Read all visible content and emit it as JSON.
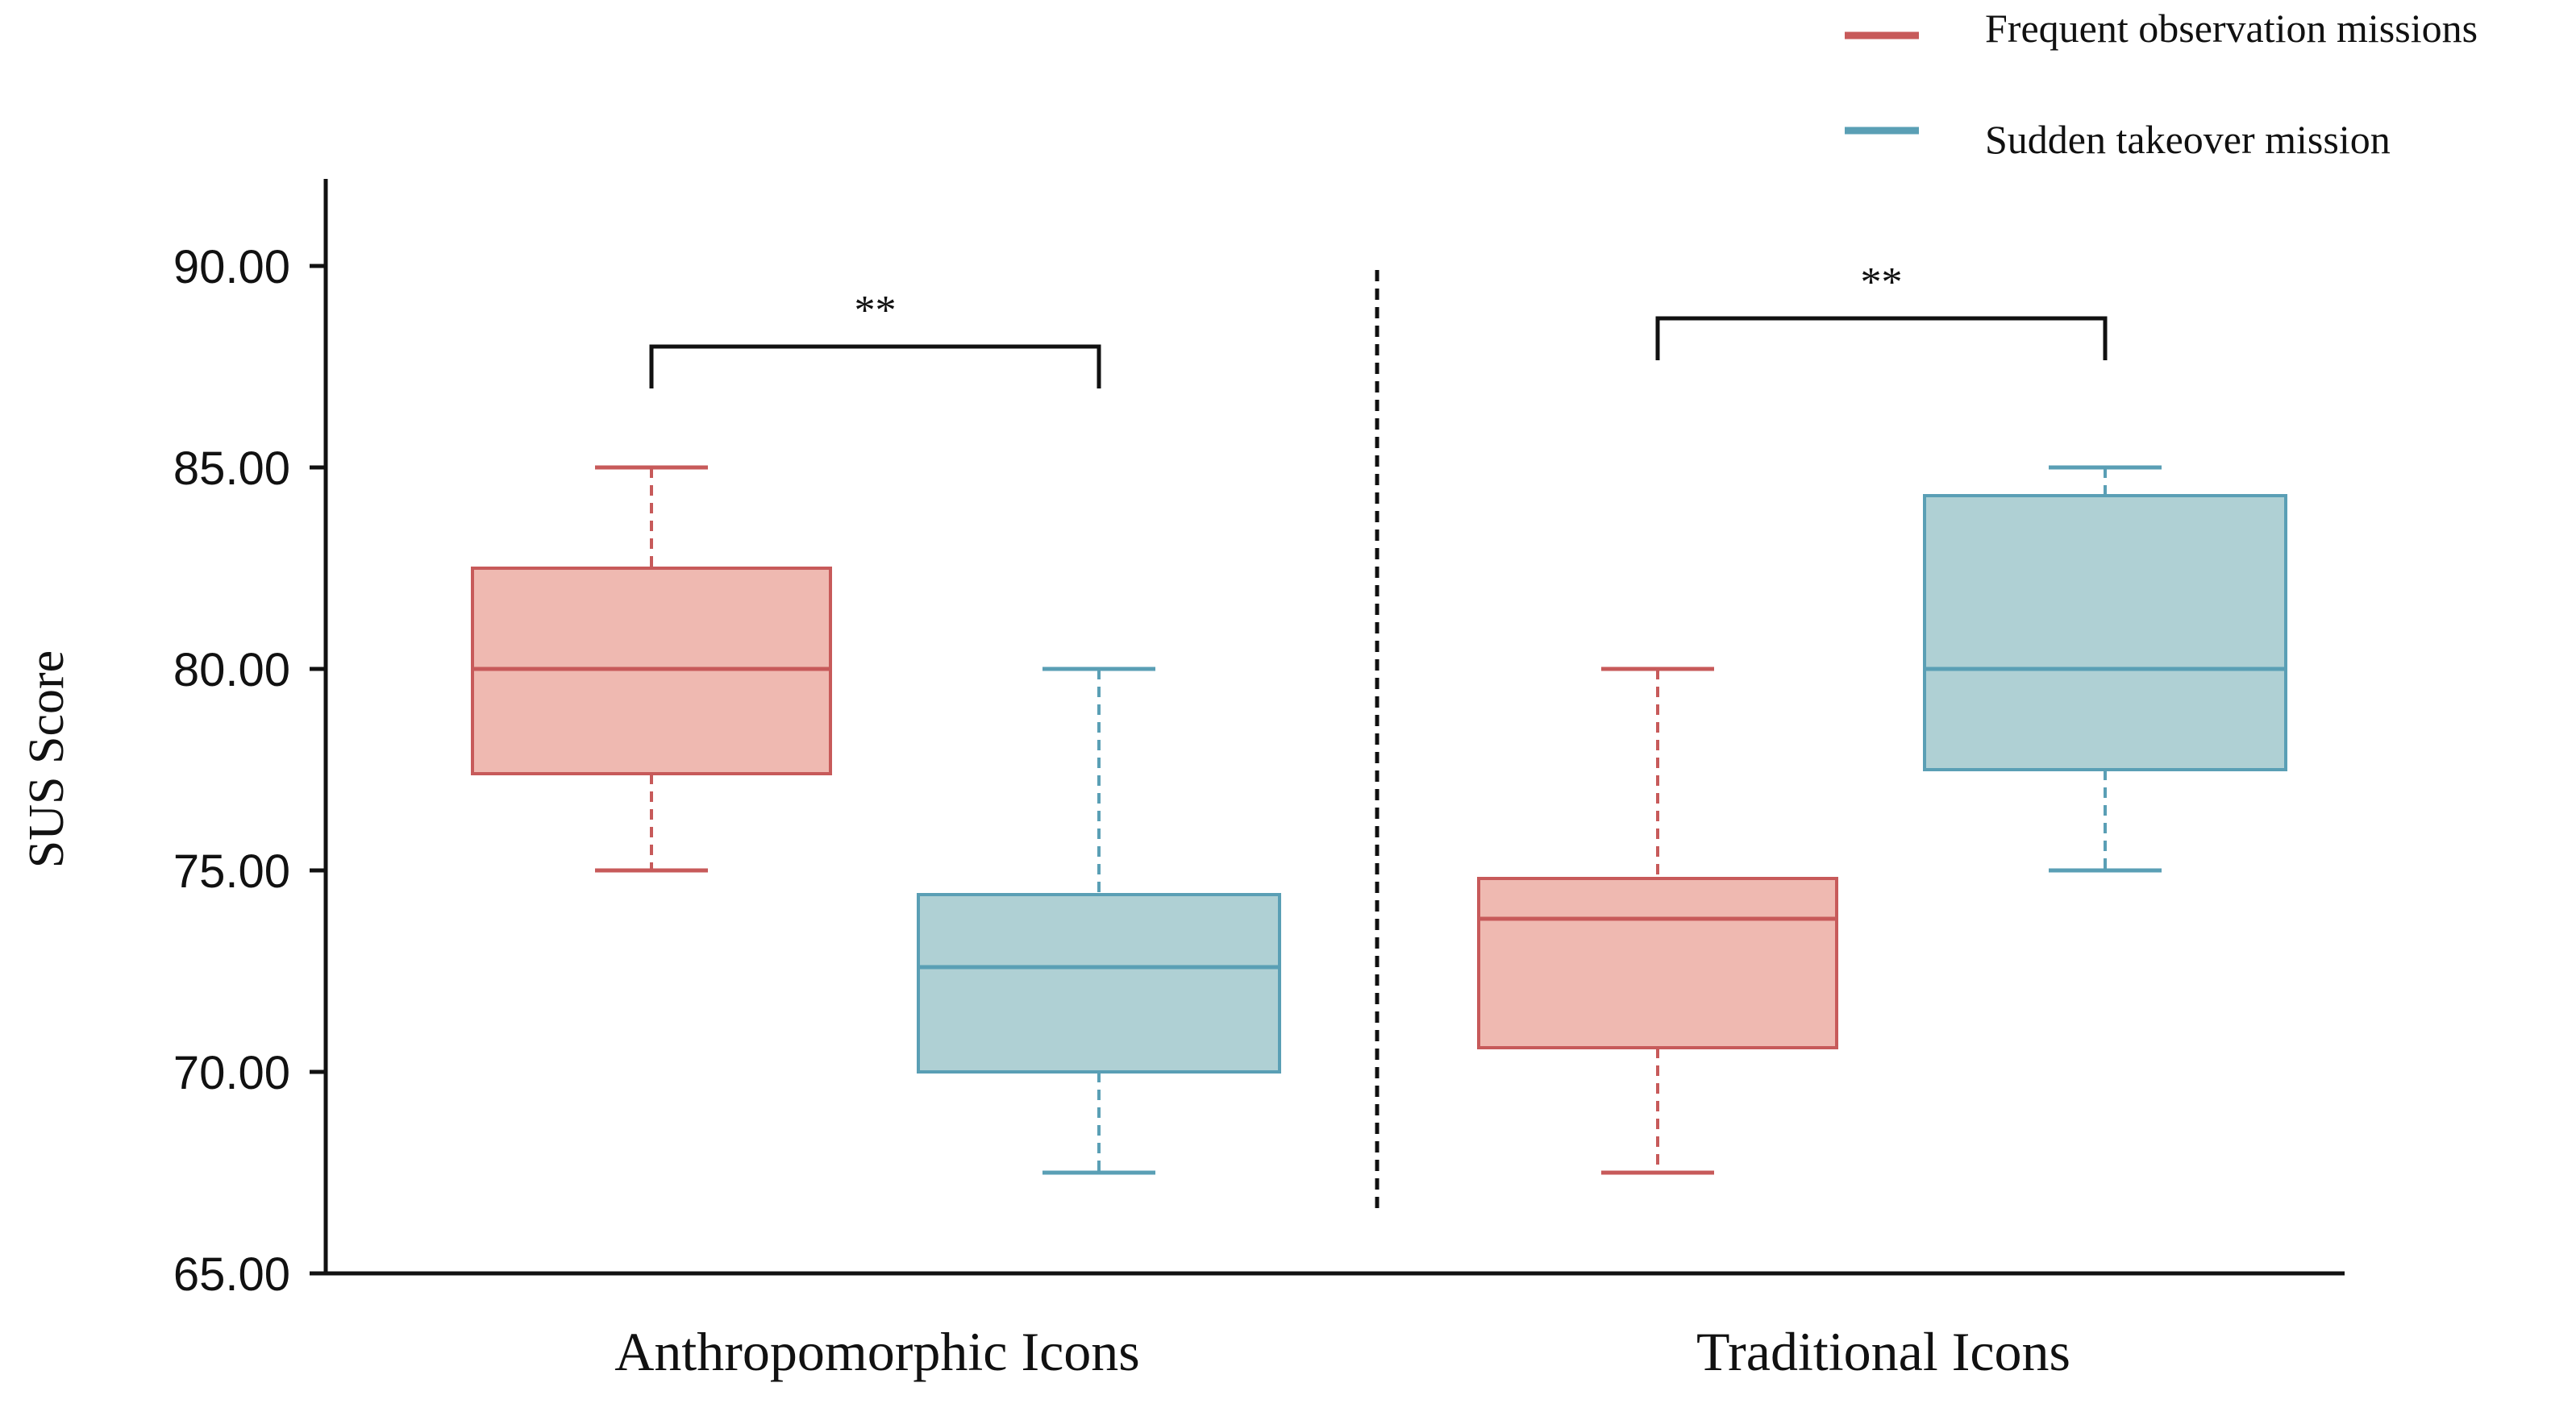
{
  "chart_data": {
    "type": "box",
    "ylabel": "SUS Score",
    "xlabel": "",
    "ylim": [
      65,
      92
    ],
    "y_ticks": [
      65,
      70,
      75,
      80,
      85,
      90
    ],
    "y_tick_labels": [
      "65.00",
      "70.00",
      "75.00",
      "80.00",
      "85.00",
      "90.00"
    ],
    "groups": [
      "Anthropomorphic Icons",
      "Traditional Icons"
    ],
    "legend_position": "top-right",
    "series": [
      {
        "name": "Frequent observation missions",
        "color": "#c75a5a",
        "fill": "#efb9b1",
        "boxes": [
          {
            "group": "Anthropomorphic Icons",
            "min": 75.0,
            "q1": 77.4,
            "median": 80.0,
            "q3": 82.5,
            "max": 85.0
          },
          {
            "group": "Traditional Icons",
            "min": 67.5,
            "q1": 70.6,
            "median": 73.8,
            "q3": 74.8,
            "max": 80.0
          }
        ]
      },
      {
        "name": "Sudden takeover mission",
        "color": "#5a9fb5",
        "fill": "#afd0d4",
        "boxes": [
          {
            "group": "Anthropomorphic Icons",
            "min": 67.5,
            "q1": 70.0,
            "median": 72.6,
            "q3": 74.4,
            "max": 80.0
          },
          {
            "group": "Traditional Icons",
            "min": 75.0,
            "q1": 77.5,
            "median": 80.0,
            "q3": 84.3,
            "max": 85.0
          }
        ]
      }
    ],
    "annotations": [
      {
        "group": "Anthropomorphic Icons",
        "text": "**",
        "bracket_y": 88.0
      },
      {
        "group": "Traditional Icons",
        "text": "**",
        "bracket_y": 88.7
      }
    ],
    "separator": "dashed vertical line between groups"
  }
}
